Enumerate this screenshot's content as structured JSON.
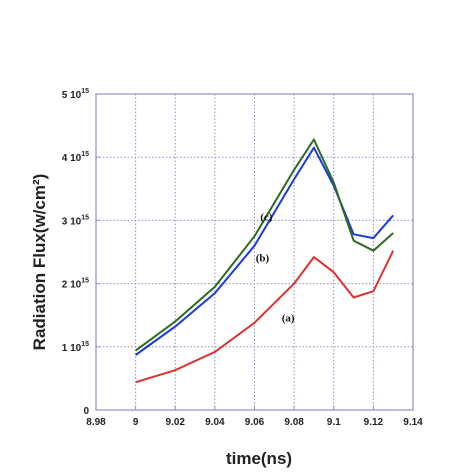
{
  "chart_data": {
    "type": "line",
    "xlabel": "time(ns)",
    "ylabel": "Radiation Flux(w/cm²)",
    "xlim": [
      8.98,
      9.14
    ],
    "ylim": [
      0,
      5000000000000000.0
    ],
    "grid": true,
    "x_ticks": [
      {
        "value": 8.98,
        "label": "8.98"
      },
      {
        "value": 9.0,
        "label": "9"
      },
      {
        "value": 9.02,
        "label": "9.02"
      },
      {
        "value": 9.04,
        "label": "9.04"
      },
      {
        "value": 9.06,
        "label": "9.06"
      },
      {
        "value": 9.08,
        "label": "9.08"
      },
      {
        "value": 9.1,
        "label": "9.1"
      },
      {
        "value": 9.12,
        "label": "9.12"
      },
      {
        "value": 9.14,
        "label": "9.14"
      }
    ],
    "y_ticks": [
      {
        "value": 0,
        "mantissa": "0",
        "exp": ""
      },
      {
        "value": 1000000000000000.0,
        "mantissa": "1 10",
        "exp": "15"
      },
      {
        "value": 2000000000000000.0,
        "mantissa": "2 10",
        "exp": "15"
      },
      {
        "value": 3000000000000000.0,
        "mantissa": "3 10",
        "exp": "15"
      },
      {
        "value": 4000000000000000.0,
        "mantissa": "4 10",
        "exp": "15"
      },
      {
        "value": 5000000000000000.0,
        "mantissa": "5 10",
        "exp": "15"
      }
    ],
    "series": [
      {
        "name": "(a)",
        "color": "#e03030",
        "x": [
          9.0,
          9.02,
          9.04,
          9.06,
          9.08,
          9.09,
          9.1,
          9.11,
          9.12,
          9.13
        ],
        "y": [
          440000000000000.0,
          630000000000000.0,
          920000000000000.0,
          1380000000000000.0,
          2000000000000000.0,
          2420000000000000.0,
          2180000000000000.0,
          1780000000000000.0,
          1880000000000000.0,
          2520000000000000.0
        ]
      },
      {
        "name": "(b)",
        "color": "#1a3ae0",
        "x": [
          9.0,
          9.02,
          9.04,
          9.06,
          9.08,
          9.09,
          9.1,
          9.11,
          9.12,
          9.13
        ],
        "y": [
          870000000000000.0,
          1320000000000000.0,
          1850000000000000.0,
          2600000000000000.0,
          3650000000000000.0,
          4150000000000000.0,
          3550000000000000.0,
          2780000000000000.0,
          2720000000000000.0,
          3080000000000000.0
        ]
      },
      {
        "name": "(c)",
        "color": "#2c6b1e",
        "x": [
          9.0,
          9.02,
          9.04,
          9.06,
          9.08,
          9.09,
          9.1,
          9.11,
          9.12,
          9.13
        ],
        "y": [
          940000000000000.0,
          1400000000000000.0,
          1950000000000000.0,
          2750000000000000.0,
          3800000000000000.0,
          4280000000000000.0,
          3600000000000000.0,
          2680000000000000.0,
          2520000000000000.0,
          2800000000000000.0
        ]
      }
    ],
    "annotations": [
      {
        "text": "(c)",
        "x": 9.066,
        "y": 3000000000000000.0
      },
      {
        "text": "(b)",
        "x": 9.064,
        "y": 2350000000000000.0
      },
      {
        "text": "(a)",
        "x": 9.077,
        "y": 1400000000000000.0
      }
    ],
    "colors": {
      "grid": "#8f8fcf",
      "frame": "#8f8fcf"
    }
  }
}
